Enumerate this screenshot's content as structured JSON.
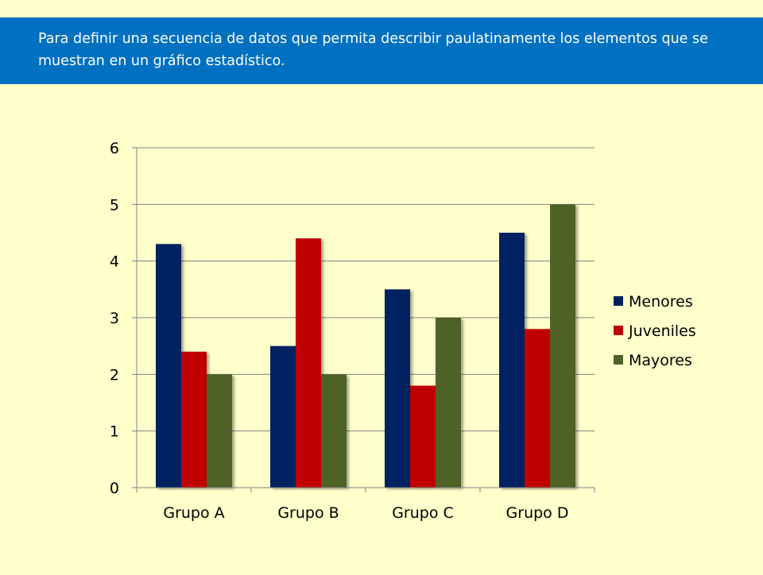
{
  "banner": {
    "text": "Para definir una secuencia de datos que permita describir paulatinamente los elementos que se muestran en un gráfico estadístico."
  },
  "chart_data": {
    "type": "bar",
    "categories": [
      "Grupo A",
      "Grupo B",
      "Grupo C",
      "Grupo D"
    ],
    "series": [
      {
        "name": "Menores",
        "values": [
          4.3,
          2.5,
          3.5,
          4.5
        ],
        "color": "#002060"
      },
      {
        "name": "Juveniles",
        "values": [
          2.4,
          4.4,
          1.8,
          2.8
        ],
        "color": "#C00000"
      },
      {
        "name": "Mayores",
        "values": [
          2.0,
          2.0,
          3.0,
          5.0
        ],
        "color": "#4F6228"
      }
    ],
    "ylim": [
      0,
      6
    ],
    "yticks": [
      0,
      1,
      2,
      3,
      4,
      5,
      6
    ],
    "grid": true,
    "legend": "right",
    "gridColor": "#808080",
    "textColor": "#000000"
  }
}
